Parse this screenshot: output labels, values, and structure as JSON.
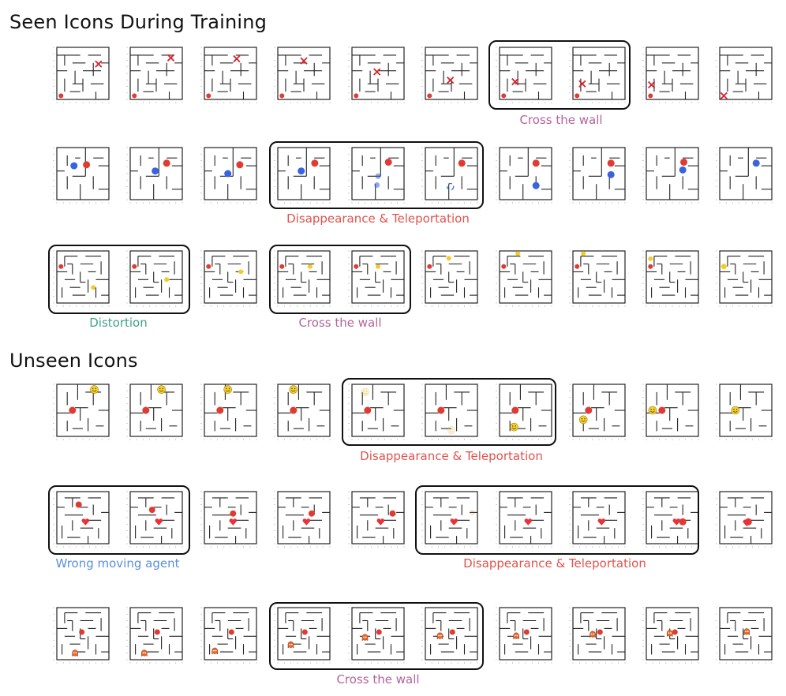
{
  "sections": {
    "seen": "Seen Icons During Training",
    "unseen": "Unseen Icons"
  },
  "labels": {
    "r1_cross": "Cross the wall",
    "r2_disappear": "Disappearance & Teleportation",
    "r3_distortion": "Distortion",
    "r3_cross": "Cross the wall",
    "r4_disappear": "Disappearance & Teleportation",
    "r5_wrong": "Wrong moving agent",
    "r5_disappear": "Disappearance & Teleportation",
    "r6_cross": "Cross the wall"
  },
  "colors": {
    "agent_red": "#e03b33",
    "agent_blue": "#3a63e0",
    "star_yellow": "#f2cc2a",
    "cross_red": "#d4232b",
    "heart_red": "#e8323a",
    "box_border": "#111111",
    "cross_label": "#b4639c",
    "disappear_label": "#e0534d",
    "distortion_label": "#3fa38a",
    "wrong_label": "#5a8fdc"
  },
  "icons": [
    "cross-icon",
    "agent-dot-icon",
    "star-dot-icon",
    "smiley-icon",
    "heart-icon",
    "pacman-ghost-icon"
  ]
}
